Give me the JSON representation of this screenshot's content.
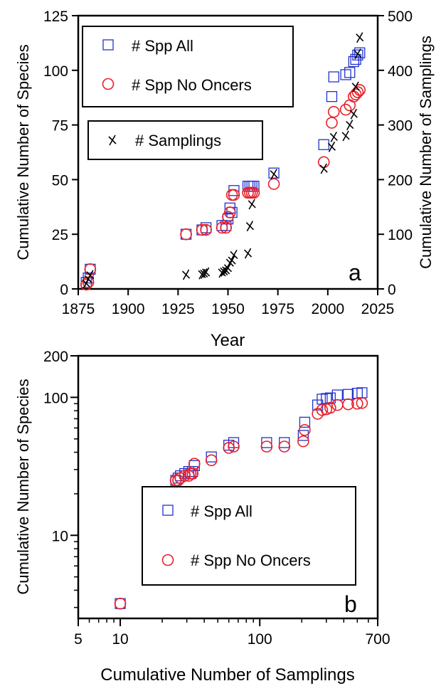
{
  "chart_data": [
    {
      "type": "scatter",
      "panel_label": "a",
      "xlabel": "Year",
      "ylabel": "Cumulative Number of Species",
      "y2label": "Cumulative Number of Samplings",
      "xlim": [
        1875,
        2025
      ],
      "ylim": [
        0,
        125
      ],
      "y2lim": [
        0,
        500
      ],
      "xticks": [
        1875,
        1900,
        1925,
        1950,
        1975,
        2000,
        2025
      ],
      "yticks": [
        0,
        25,
        50,
        75,
        100,
        125
      ],
      "y2ticks": [
        0,
        100,
        200,
        300,
        400,
        500
      ],
      "legend_entries": [
        {
          "name": "# Spp All",
          "marker": "square",
          "color": "#2233cc"
        },
        {
          "name": "# Spp No Oncers",
          "marker": "circle",
          "color": "#e8202a"
        },
        {
          "name": "# Samplings",
          "marker": "x",
          "color": "#000000"
        }
      ],
      "series": [
        {
          "name": "# Spp All",
          "axis": "left",
          "x": [
            1879,
            1880,
            1881,
            1929,
            1937,
            1939,
            1947,
            1949,
            1950,
            1951,
            1952,
            1953,
            1960,
            1961,
            1962,
            1963,
            1973,
            1998,
            2002,
            2003,
            2009,
            2011,
            2013,
            2014,
            2015,
            2016
          ],
          "y": [
            3,
            5,
            9,
            25,
            27,
            28,
            29,
            29,
            32,
            37,
            35,
            45,
            47,
            47,
            47,
            47,
            53,
            66,
            88,
            97,
            98,
            99,
            104,
            105,
            107,
            108
          ]
        },
        {
          "name": "# Spp No Oncers",
          "axis": "left",
          "x": [
            1879,
            1880,
            1881,
            1929,
            1937,
            1939,
            1947,
            1949,
            1950,
            1951,
            1952,
            1953,
            1960,
            1961,
            1962,
            1963,
            1973,
            1998,
            2002,
            2003,
            2009,
            2011,
            2013,
            2014,
            2015,
            2016
          ],
          "y": [
            2,
            3,
            9,
            25,
            27,
            27,
            28,
            28,
            33,
            35,
            43,
            43,
            44,
            44,
            44,
            44,
            48,
            58,
            76,
            81,
            82,
            84,
            88,
            89,
            90,
            91
          ]
        },
        {
          "name": "# Samplings",
          "axis": "right",
          "x": [
            1879,
            1880,
            1881,
            1929,
            1937,
            1938,
            1939,
            1947,
            1948,
            1949,
            1950,
            1951,
            1952,
            1953,
            1960,
            1961,
            1962,
            1973,
            1998,
            2002,
            2003,
            2009,
            2011,
            2013,
            2014,
            2015,
            2016
          ],
          "y": [
            10,
            18,
            25,
            26,
            27,
            28,
            30,
            30,
            32,
            34,
            38,
            48,
            52,
            62,
            65,
            115,
            155,
            210,
            220,
            260,
            278,
            280,
            300,
            320,
            370,
            430,
            460
          ]
        }
      ]
    },
    {
      "type": "scatter",
      "panel_label": "b",
      "xlabel": "Cumulative Number of Samplings",
      "ylabel": "Cumulative Number of Species",
      "xscale": "log",
      "yscale": "log",
      "xlim": [
        5,
        700
      ],
      "ylim": [
        2.5,
        200
      ],
      "xticks": [
        5,
        10,
        100,
        700
      ],
      "yticks": [
        10,
        100,
        200
      ],
      "legend_entries": [
        {
          "name": "# Spp All",
          "marker": "square",
          "color": "#2233cc"
        },
        {
          "name": "# Spp No Oncers",
          "marker": "circle",
          "color": "#e8202a"
        }
      ],
      "series": [
        {
          "name": "# Spp All",
          "x": [
            10,
            25,
            26,
            27,
            29,
            31,
            32,
            33,
            34,
            45,
            60,
            65,
            112,
            150,
            205,
            210,
            260,
            280,
            300,
            320,
            360,
            430,
            500,
            540
          ],
          "y": [
            3.2,
            25,
            26,
            27,
            28,
            29,
            28,
            29,
            32,
            37,
            45,
            47,
            47,
            47,
            53,
            66,
            88,
            97,
            98,
            99,
            104,
            105,
            107,
            108
          ]
        },
        {
          "name": "# Spp No Oncers",
          "x": [
            10,
            25,
            26,
            27,
            29,
            31,
            32,
            33,
            34,
            45,
            60,
            65,
            112,
            150,
            205,
            210,
            260,
            280,
            300,
            320,
            360,
            430,
            500,
            540
          ],
          "y": [
            3.2,
            25,
            25,
            26,
            27,
            27,
            28,
            28,
            33,
            35,
            43,
            44,
            44,
            44,
            48,
            58,
            76,
            81,
            82,
            84,
            88,
            89,
            90,
            91
          ]
        }
      ]
    }
  ]
}
